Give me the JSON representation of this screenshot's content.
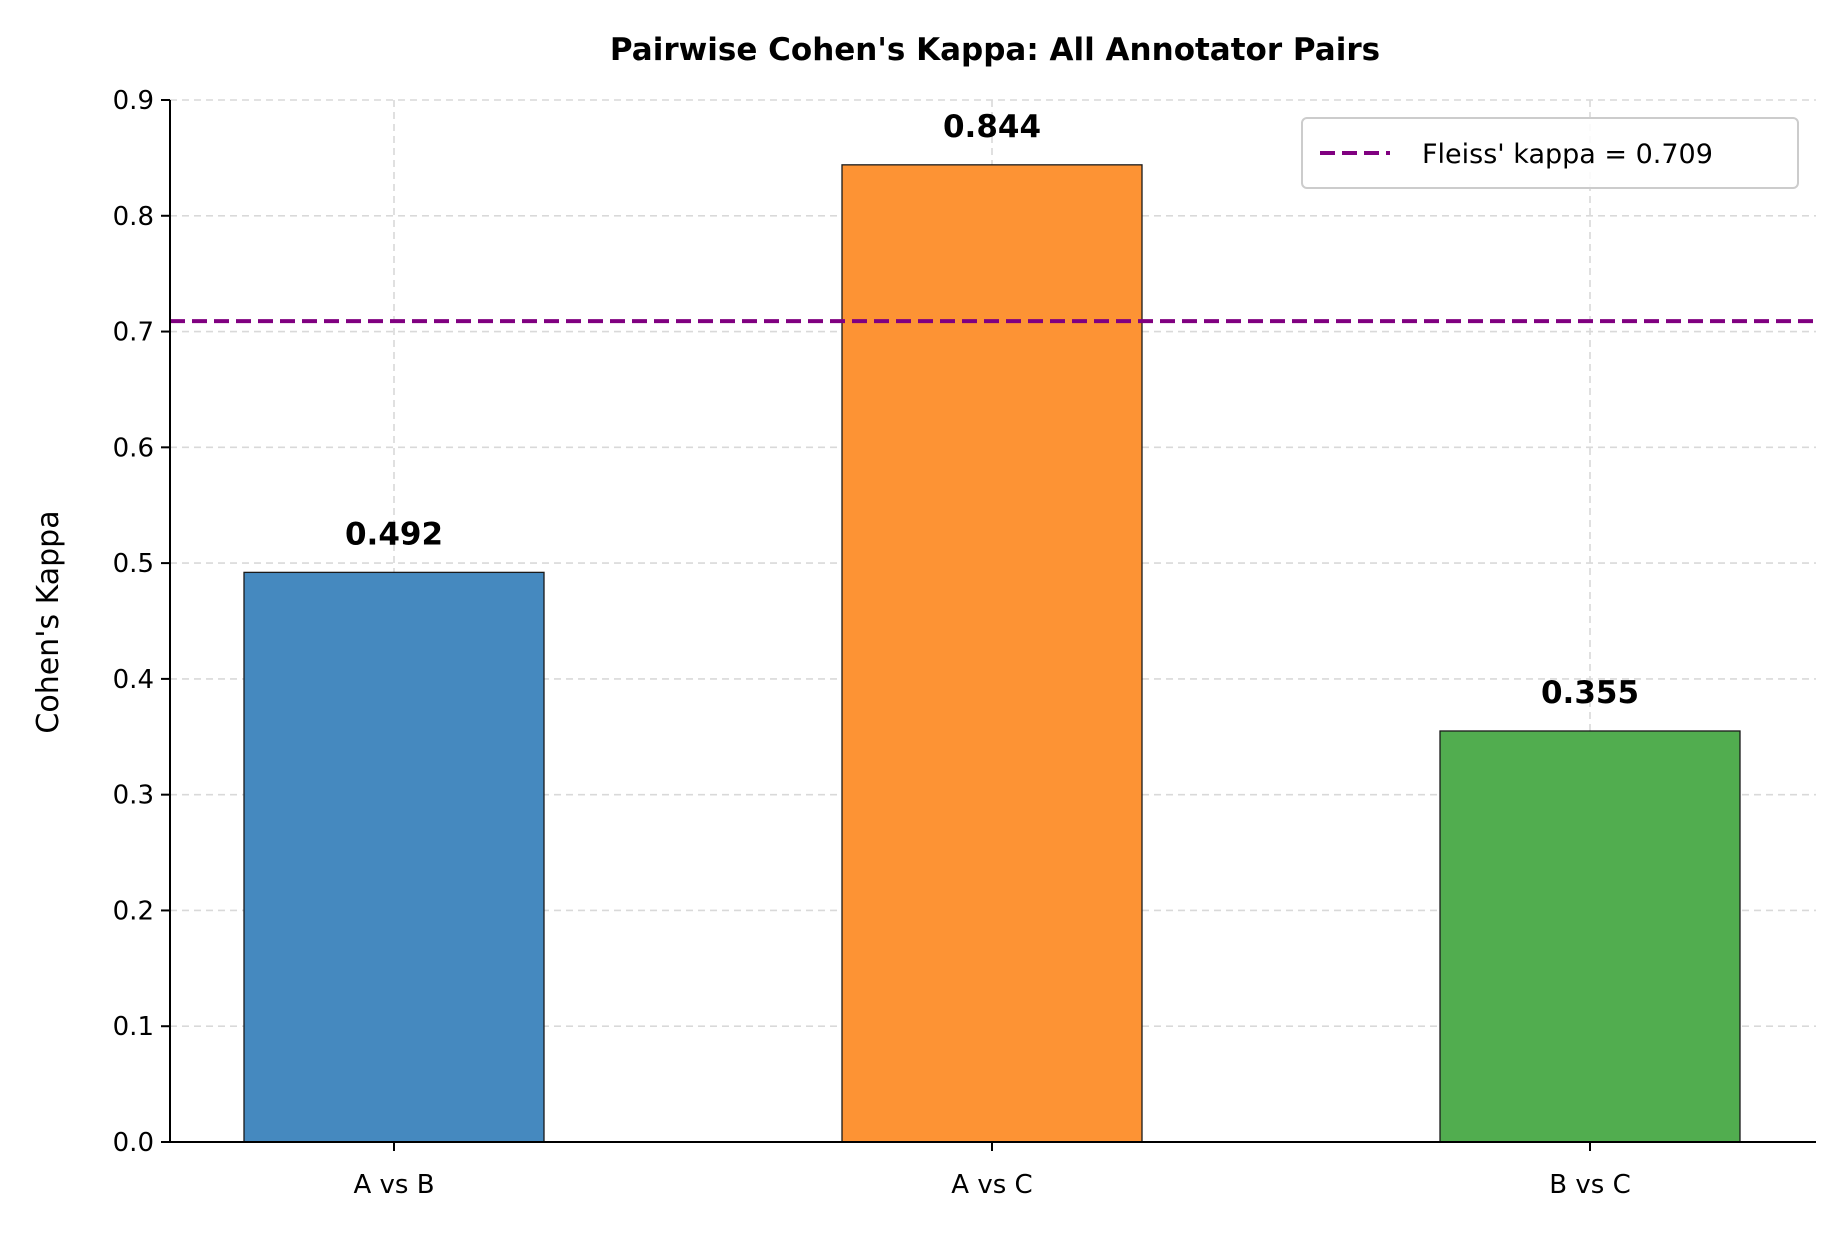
{
  "chart_data": {
    "type": "bar",
    "title": "Pairwise Cohen's Kappa: All Annotator Pairs",
    "xlabel": "",
    "ylabel": "Cohen's Kappa",
    "categories": [
      "A vs B",
      "A vs C",
      "B vs C"
    ],
    "values": [
      0.492,
      0.844,
      0.355
    ],
    "value_labels": [
      "0.492",
      "0.844",
      "0.355"
    ],
    "bar_colors": [
      "#4589bf",
      "#fd9334",
      "#51ad4f"
    ],
    "ylim": [
      0,
      0.9
    ],
    "yticks": [
      0.0,
      0.1,
      0.2,
      0.3,
      0.4,
      0.5,
      0.6,
      0.7,
      0.8,
      0.9
    ],
    "ytick_labels": [
      "0.0",
      "0.1",
      "0.2",
      "0.3",
      "0.4",
      "0.5",
      "0.6",
      "0.7",
      "0.8",
      "0.9"
    ],
    "reference_line": {
      "value": 0.709,
      "label": "Fleiss' kappa = 0.709",
      "color": "#800080",
      "style": "dashed"
    },
    "grid": true,
    "legend_position": "top-right"
  }
}
